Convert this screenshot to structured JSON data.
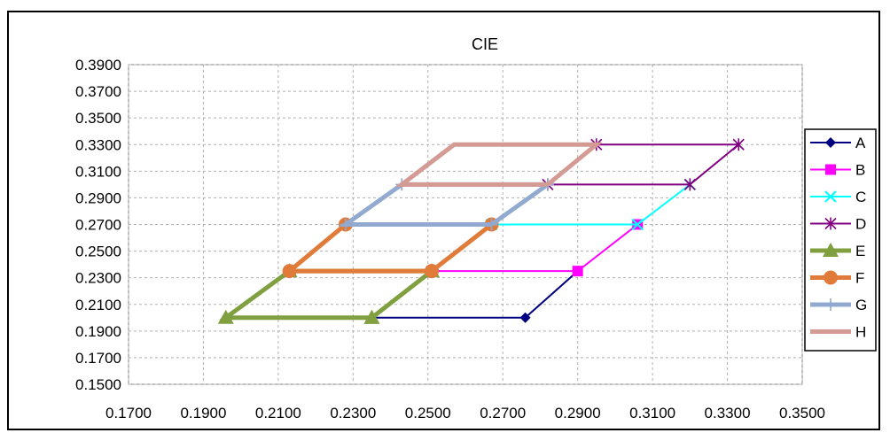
{
  "chart_data": {
    "type": "line",
    "title": "CIE",
    "xlabel": "",
    "ylabel": "",
    "xlim": [
      0.17,
      0.35
    ],
    "ylim": [
      0.15,
      0.39
    ],
    "x_ticks": [
      "0.1700",
      "0.1900",
      "0.2100",
      "0.2300",
      "0.2500",
      "0.2700",
      "0.2900",
      "0.3100",
      "0.3300",
      "0.3500"
    ],
    "y_ticks": [
      "0.3900",
      "0.3700",
      "0.3500",
      "0.3300",
      "0.3100",
      "0.2900",
      "0.2700",
      "0.2500",
      "0.2300",
      "0.2100",
      "0.1900",
      "0.1700",
      "0.1500"
    ],
    "grid": true,
    "legend_position": "right",
    "series": [
      {
        "name": "A",
        "color": "#000080",
        "marker": "diamond",
        "width": 2,
        "points": [
          [
            0.235,
            0.2
          ],
          [
            0.276,
            0.2
          ],
          [
            0.29,
            0.235
          ]
        ]
      },
      {
        "name": "B",
        "color": "#ff00ff",
        "marker": "square",
        "width": 2,
        "points": [
          [
            0.251,
            0.235
          ],
          [
            0.29,
            0.235
          ],
          [
            0.306,
            0.27
          ]
        ]
      },
      {
        "name": "C",
        "color": "#00ffff",
        "marker": "x",
        "width": 2,
        "points": [
          [
            0.267,
            0.27
          ],
          [
            0.306,
            0.27
          ],
          [
            0.32,
            0.3
          ]
        ]
      },
      {
        "name": "D",
        "color": "#800080",
        "marker": "star",
        "width": 2,
        "points": [
          [
            0.282,
            0.3
          ],
          [
            0.32,
            0.3
          ],
          [
            0.333,
            0.33
          ],
          [
            0.295,
            0.33
          ]
        ]
      },
      {
        "name": "E",
        "color": "#80a040",
        "marker": "triangle",
        "width": 5,
        "points": [
          [
            0.235,
            0.2
          ],
          [
            0.196,
            0.2
          ],
          [
            0.213,
            0.235
          ],
          [
            0.251,
            0.235
          ],
          [
            0.235,
            0.2
          ]
        ]
      },
      {
        "name": "F",
        "color": "#e07b39",
        "marker": "circle",
        "width": 5,
        "points": [
          [
            0.251,
            0.235
          ],
          [
            0.213,
            0.235
          ],
          [
            0.228,
            0.27
          ],
          [
            0.267,
            0.27
          ],
          [
            0.251,
            0.235
          ]
        ]
      },
      {
        "name": "G",
        "color": "#92a9d0",
        "marker": "plus",
        "width": 5,
        "points": [
          [
            0.267,
            0.27
          ],
          [
            0.228,
            0.27
          ],
          [
            0.243,
            0.3
          ],
          [
            0.282,
            0.3
          ],
          [
            0.267,
            0.27
          ]
        ]
      },
      {
        "name": "H",
        "color": "#d49a94",
        "marker": "none",
        "width": 5,
        "points": [
          [
            0.282,
            0.3
          ],
          [
            0.243,
            0.3
          ],
          [
            0.257,
            0.33
          ],
          [
            0.295,
            0.33
          ],
          [
            0.282,
            0.3
          ]
        ]
      }
    ]
  }
}
